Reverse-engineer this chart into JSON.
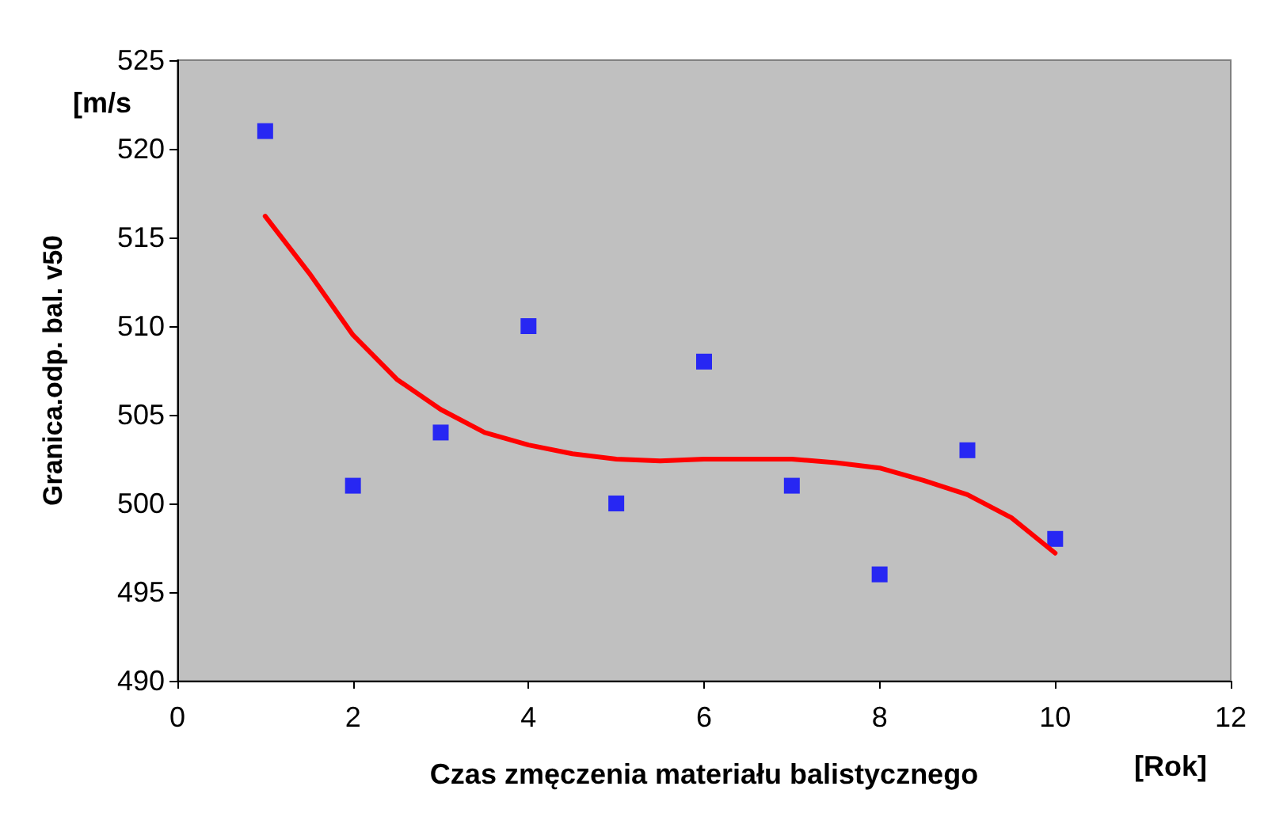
{
  "chart_data": {
    "type": "scatter",
    "xlabel": "Czas zmęczenia materiału balistycznego",
    "ylabel": "Granica.odp. bal. v50",
    "annotations": [
      "[m/s",
      "[Rok]"
    ],
    "xlim": [
      0,
      12
    ],
    "xticks": [
      0,
      2,
      4,
      6,
      8,
      10,
      12
    ],
    "ylim": [
      490,
      525
    ],
    "yticks": [
      490,
      495,
      500,
      505,
      510,
      515,
      520,
      525
    ],
    "grid": false,
    "series": [
      {
        "color": "#0000ff",
        "marker": "square",
        "x": [
          1,
          2,
          3,
          4,
          5,
          6,
          7,
          8,
          9,
          10
        ],
        "values": [
          521,
          501,
          504,
          510,
          500,
          508,
          501,
          496,
          503,
          498
        ]
      },
      {
        "type": "line",
        "color": "#ff0000",
        "marker": "none",
        "line_style": "solid",
        "x": [
          1,
          1.5,
          2,
          2.5,
          3,
          3.5,
          4,
          4.5,
          5,
          5.5,
          6,
          6.5,
          7,
          7.5,
          8,
          8.5,
          9,
          9.5,
          10
        ],
        "values": [
          516.2,
          513,
          509.5,
          507,
          505.3,
          504,
          503.3,
          502.8,
          502.5,
          502.4,
          502.5,
          502.5,
          502.5,
          502.3,
          502,
          501.3,
          500.5,
          499.2,
          497.2
        ]
      }
    ]
  }
}
